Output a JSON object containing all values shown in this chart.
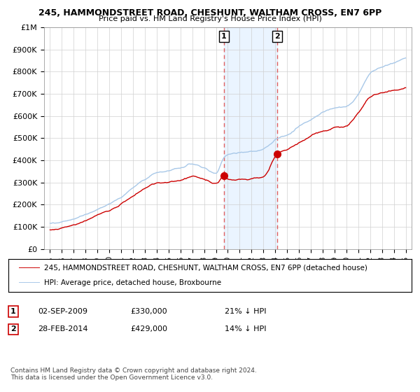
{
  "title1": "245, HAMMONDSTREET ROAD, CHESHUNT, WALTHAM CROSS, EN7 6PP",
  "title2": "Price paid vs. HM Land Registry's House Price Index (HPI)",
  "ylabel_ticks": [
    "£0",
    "£100K",
    "£200K",
    "£300K",
    "£400K",
    "£500K",
    "£600K",
    "£700K",
    "£800K",
    "£900K",
    "£1M"
  ],
  "ytick_values": [
    0,
    100000,
    200000,
    300000,
    400000,
    500000,
    600000,
    700000,
    800000,
    900000,
    1000000
  ],
  "x_start_year": 1995,
  "x_end_year": 2025,
  "hpi_color": "#a8c8e8",
  "price_color": "#cc0000",
  "marker1_date": 2009.67,
  "marker1_price": 330000,
  "marker2_date": 2014.17,
  "marker2_price": 429000,
  "vline_color": "#e06060",
  "shade_color": "#ddeeff",
  "legend_house": "245, HAMMONDSTREET ROAD, CHESHUNT, WALTHAM CROSS, EN7 6PP (detached house)",
  "legend_hpi": "HPI: Average price, detached house, Broxbourne",
  "note1_label": "1",
  "note1_date": "02-SEP-2009",
  "note1_price": "£330,000",
  "note1_text": "21% ↓ HPI",
  "note2_label": "2",
  "note2_date": "28-FEB-2014",
  "note2_price": "£429,000",
  "note2_text": "14% ↓ HPI",
  "footer": "Contains HM Land Registry data © Crown copyright and database right 2024.\nThis data is licensed under the Open Government Licence v3.0."
}
